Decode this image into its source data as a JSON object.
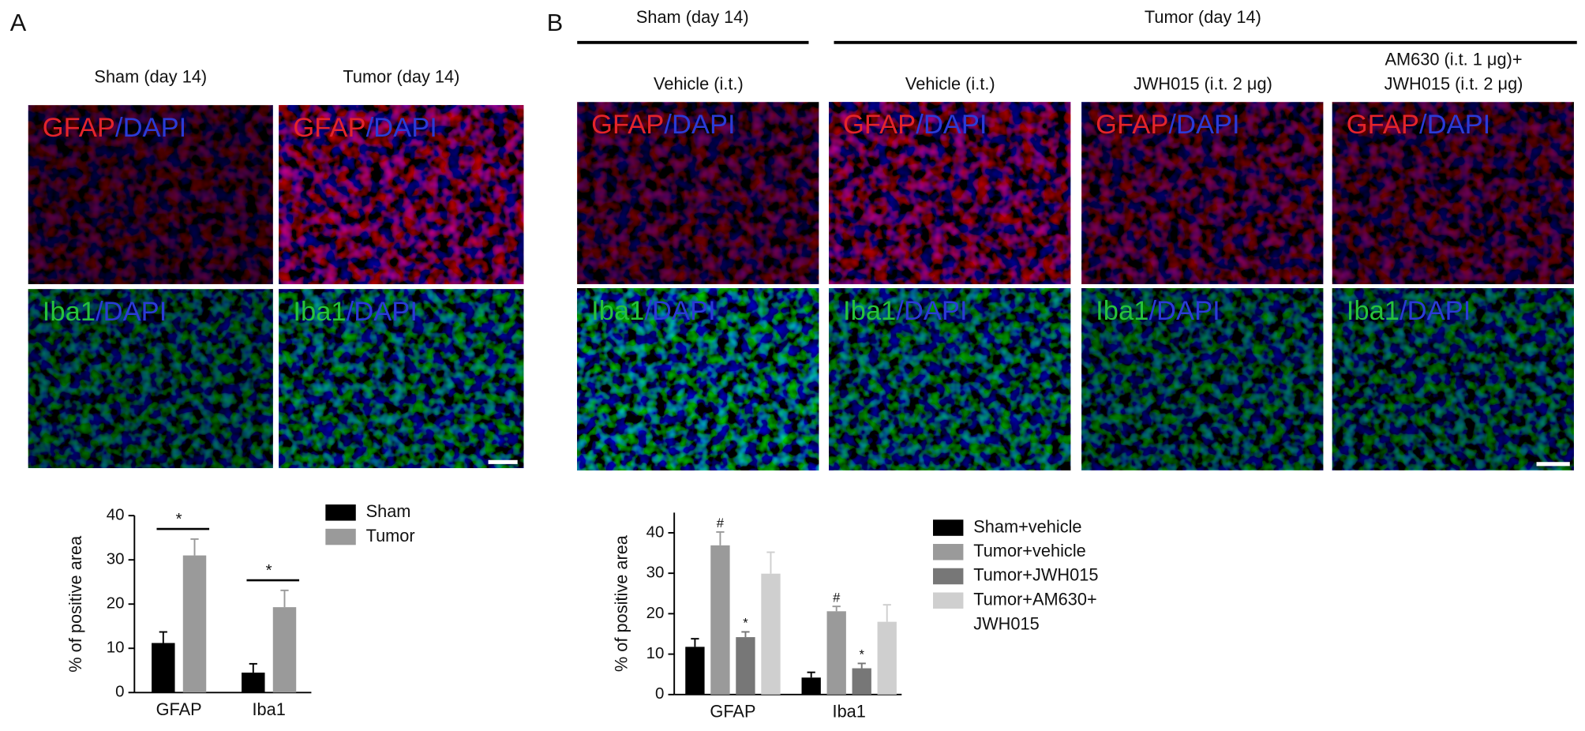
{
  "panel_a": {
    "label": "A",
    "columns": [
      "Sham (day 14)",
      "Tumor (day 14)"
    ]
  },
  "panel_b": {
    "label": "B",
    "groups": [
      "Sham (day 14)",
      "Tumor (day 14)"
    ],
    "columns": [
      [
        "Vehicle (i.t.)"
      ],
      [
        "Vehicle (i.t.)"
      ],
      [
        "JWH015 (i.t. 2 μg)"
      ],
      [
        "AM630 (i.t. 1 μg)+",
        "JWH015 (i.t. 2 μg)"
      ]
    ]
  },
  "stains": [
    {
      "marker": "GFAP",
      "marker_color": "#e3242b",
      "counterstain": "/DAPI",
      "counterstain_color": "#2b3bd6"
    },
    {
      "marker": "Iba1",
      "marker_color": "#27c23c",
      "counterstain": "/DAPI",
      "counterstain_color": "#2b3bd6"
    }
  ],
  "chart_data": [
    {
      "type": "bar",
      "ylabel": "% of positive area",
      "categories": [
        "GFAP",
        "Iba1"
      ],
      "series": [
        {
          "name": "Sham",
          "color": "#000000",
          "values": [
            11.2,
            4.5
          ],
          "errors": [
            2.5,
            2.0
          ]
        },
        {
          "name": "Tumor",
          "color": "#9a9a9a",
          "values": [
            31,
            19.3
          ],
          "errors": [
            3.7,
            3.8
          ]
        }
      ],
      "ylim": [
        0,
        40
      ],
      "yticks": [
        0,
        10,
        20,
        30,
        40
      ],
      "annotations": [
        {
          "text": "*",
          "category": 0
        },
        {
          "text": "*",
          "category": 1
        }
      ]
    },
    {
      "type": "bar",
      "ylabel": "% of positive area",
      "categories": [
        "GFAP",
        "Iba1"
      ],
      "series": [
        {
          "name": "Sham+vehicle",
          "color": "#000000",
          "values": [
            11.8,
            4.2
          ],
          "errors": [
            2.0,
            1.3
          ]
        },
        {
          "name": "Tumor+vehicle",
          "color": "#9a9a9a",
          "values": [
            36.9,
            20.6
          ],
          "errors": [
            3.3,
            1.2
          ]
        },
        {
          "name": "Tumor+JWH015",
          "color": "#777777",
          "values": [
            14.2,
            6.5
          ],
          "errors": [
            1.3,
            1.2
          ]
        },
        {
          "name": "Tumor+AM630+ JWH015",
          "color": "#cfcfcf",
          "values": [
            29.9,
            18
          ],
          "errors": [
            5.3,
            4.2
          ]
        }
      ],
      "ylim": [
        0,
        45
      ],
      "yticks": [
        0,
        10,
        20,
        30,
        40
      ],
      "annotations": [
        {
          "text": "#",
          "series": 1,
          "category": 0
        },
        {
          "text": "*",
          "series": 2,
          "category": 0
        },
        {
          "text": "#",
          "series": 1,
          "category": 1
        },
        {
          "text": "*",
          "series": 2,
          "category": 1
        }
      ]
    }
  ]
}
